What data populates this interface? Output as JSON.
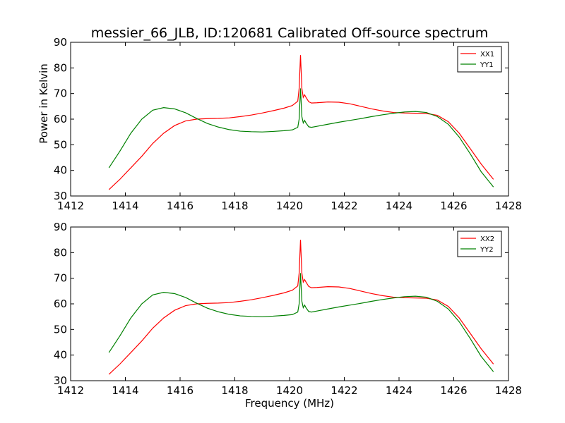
{
  "chart_data": [
    {
      "type": "line",
      "title": "messier_66_JLB, ID:120681 Calibrated Off-source spectrum",
      "xlabel": "",
      "ylabel": "Power in Kelvin",
      "xlim": [
        1412,
        1428
      ],
      "ylim": [
        30,
        90
      ],
      "xticks": [
        1412,
        1414,
        1416,
        1418,
        1420,
        1422,
        1424,
        1426,
        1428
      ],
      "yticks": [
        30,
        40,
        50,
        60,
        70,
        80,
        90
      ],
      "legend_position": "top-right",
      "grid": false,
      "series": [
        {
          "name": "XX1",
          "color": "#ff0000",
          "x": [
            1413.4,
            1413.8,
            1414.2,
            1414.6,
            1415.0,
            1415.4,
            1415.8,
            1416.2,
            1416.6,
            1417.0,
            1417.4,
            1417.8,
            1418.2,
            1418.6,
            1419.0,
            1419.4,
            1419.8,
            1420.1,
            1420.3,
            1420.35,
            1420.4,
            1420.45,
            1420.5,
            1420.55,
            1420.6,
            1420.7,
            1420.8,
            1421.0,
            1421.4,
            1421.8,
            1422.2,
            1422.6,
            1423.0,
            1423.4,
            1423.8,
            1424.2,
            1424.6,
            1425.0,
            1425.4,
            1425.8,
            1426.2,
            1426.6,
            1427.0,
            1427.45
          ],
          "y": [
            32.5,
            36.5,
            41.0,
            45.5,
            50.5,
            54.5,
            57.5,
            59.3,
            60.0,
            60.2,
            60.3,
            60.5,
            61.0,
            61.6,
            62.4,
            63.3,
            64.3,
            65.3,
            67.0,
            72.0,
            85.0,
            72.0,
            68.5,
            69.5,
            68.5,
            66.8,
            66.3,
            66.4,
            66.7,
            66.6,
            66.0,
            65.0,
            64.0,
            63.2,
            62.6,
            62.4,
            62.3,
            62.2,
            61.5,
            59.0,
            54.5,
            48.5,
            42.5,
            36.5
          ]
        },
        {
          "name": "YY1",
          "color": "#008000",
          "x": [
            1413.4,
            1413.8,
            1414.2,
            1414.6,
            1415.0,
            1415.4,
            1415.8,
            1416.2,
            1416.6,
            1417.0,
            1417.4,
            1417.8,
            1418.2,
            1418.6,
            1419.0,
            1419.4,
            1419.8,
            1420.1,
            1420.3,
            1420.35,
            1420.4,
            1420.45,
            1420.5,
            1420.55,
            1420.6,
            1420.7,
            1420.8,
            1421.0,
            1421.4,
            1421.8,
            1422.2,
            1422.6,
            1423.0,
            1423.4,
            1423.8,
            1424.2,
            1424.6,
            1425.0,
            1425.4,
            1425.8,
            1426.2,
            1426.6,
            1427.0,
            1427.45
          ],
          "y": [
            41.0,
            47.5,
            54.5,
            60.0,
            63.5,
            64.5,
            64.0,
            62.5,
            60.3,
            58.3,
            56.9,
            55.9,
            55.3,
            55.1,
            55.0,
            55.2,
            55.5,
            55.8,
            56.8,
            60.0,
            72.0,
            61.0,
            58.5,
            59.5,
            58.5,
            57.0,
            56.8,
            57.2,
            58.0,
            58.8,
            59.5,
            60.2,
            61.0,
            61.7,
            62.3,
            62.8,
            63.0,
            62.6,
            61.0,
            58.0,
            53.0,
            46.5,
            39.5,
            33.5
          ]
        }
      ]
    },
    {
      "type": "line",
      "title": "",
      "xlabel": "Frequency (MHz)",
      "ylabel": "",
      "xlim": [
        1412,
        1428
      ],
      "ylim": [
        30,
        90
      ],
      "xticks": [
        1412,
        1414,
        1416,
        1418,
        1420,
        1422,
        1424,
        1426,
        1428
      ],
      "yticks": [
        30,
        40,
        50,
        60,
        70,
        80,
        90
      ],
      "legend_position": "top-right",
      "grid": false,
      "series": [
        {
          "name": "XX2",
          "color": "#ff0000",
          "x": [
            1413.4,
            1413.8,
            1414.2,
            1414.6,
            1415.0,
            1415.4,
            1415.8,
            1416.2,
            1416.6,
            1417.0,
            1417.4,
            1417.8,
            1418.2,
            1418.6,
            1419.0,
            1419.4,
            1419.8,
            1420.1,
            1420.3,
            1420.35,
            1420.4,
            1420.45,
            1420.5,
            1420.55,
            1420.6,
            1420.7,
            1420.8,
            1421.0,
            1421.4,
            1421.8,
            1422.2,
            1422.6,
            1423.0,
            1423.4,
            1423.8,
            1424.2,
            1424.6,
            1425.0,
            1425.4,
            1425.8,
            1426.2,
            1426.6,
            1427.0,
            1427.45
          ],
          "y": [
            32.5,
            36.5,
            41.0,
            45.5,
            50.5,
            54.5,
            57.5,
            59.3,
            60.0,
            60.2,
            60.3,
            60.5,
            61.0,
            61.6,
            62.4,
            63.3,
            64.3,
            65.3,
            67.0,
            72.0,
            85.0,
            72.0,
            68.5,
            69.5,
            68.5,
            66.8,
            66.3,
            66.4,
            66.7,
            66.6,
            66.0,
            65.0,
            64.0,
            63.2,
            62.6,
            62.4,
            62.3,
            62.2,
            61.5,
            59.0,
            54.5,
            48.5,
            42.5,
            36.5
          ]
        },
        {
          "name": "YY2",
          "color": "#008000",
          "x": [
            1413.4,
            1413.8,
            1414.2,
            1414.6,
            1415.0,
            1415.4,
            1415.8,
            1416.2,
            1416.6,
            1417.0,
            1417.4,
            1417.8,
            1418.2,
            1418.6,
            1419.0,
            1419.4,
            1419.8,
            1420.1,
            1420.3,
            1420.35,
            1420.4,
            1420.45,
            1420.5,
            1420.55,
            1420.6,
            1420.7,
            1420.8,
            1421.0,
            1421.4,
            1421.8,
            1422.2,
            1422.6,
            1423.0,
            1423.4,
            1423.8,
            1424.2,
            1424.6,
            1425.0,
            1425.4,
            1425.8,
            1426.2,
            1426.6,
            1427.0,
            1427.45
          ],
          "y": [
            41.0,
            47.5,
            54.5,
            60.0,
            63.5,
            64.5,
            64.0,
            62.5,
            60.3,
            58.3,
            56.9,
            55.9,
            55.3,
            55.1,
            55.0,
            55.2,
            55.5,
            55.8,
            56.8,
            60.0,
            72.0,
            61.0,
            58.5,
            59.5,
            58.5,
            57.0,
            56.8,
            57.2,
            58.0,
            58.8,
            59.5,
            60.2,
            61.0,
            61.7,
            62.3,
            62.8,
            63.0,
            62.6,
            61.0,
            58.0,
            53.0,
            46.5,
            39.5,
            33.5
          ]
        }
      ]
    }
  ]
}
